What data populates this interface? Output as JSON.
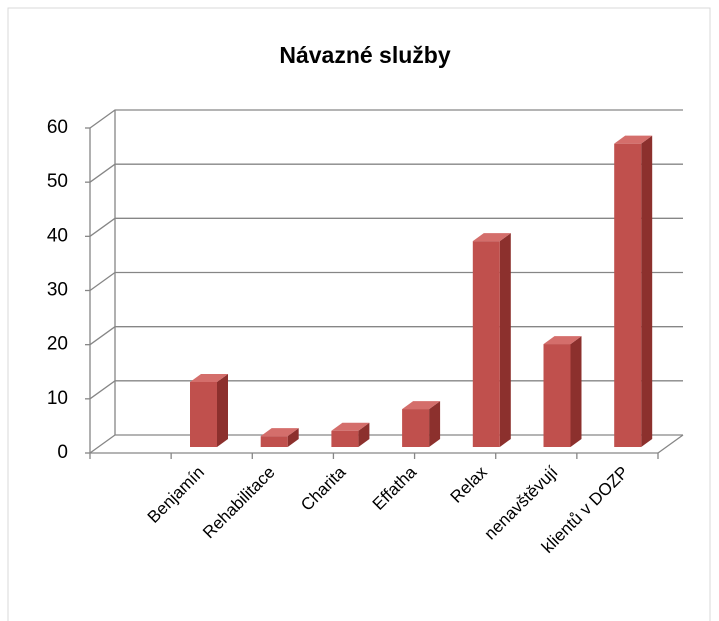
{
  "chart_data": {
    "type": "bar3d",
    "title": "Návazné služby",
    "categories": [
      "Benjamín",
      "Rehabilitace",
      "Charita",
      "Effatha",
      "Relax",
      "nenavštěvují",
      "klientů v DOZP"
    ],
    "values": [
      12,
      2,
      3,
      7,
      38,
      19,
      56
    ],
    "color": "#c0504d",
    "ylim": [
      0,
      60
    ],
    "yticks": [
      0,
      10,
      20,
      30,
      40,
      50,
      60
    ],
    "grid": true
  }
}
